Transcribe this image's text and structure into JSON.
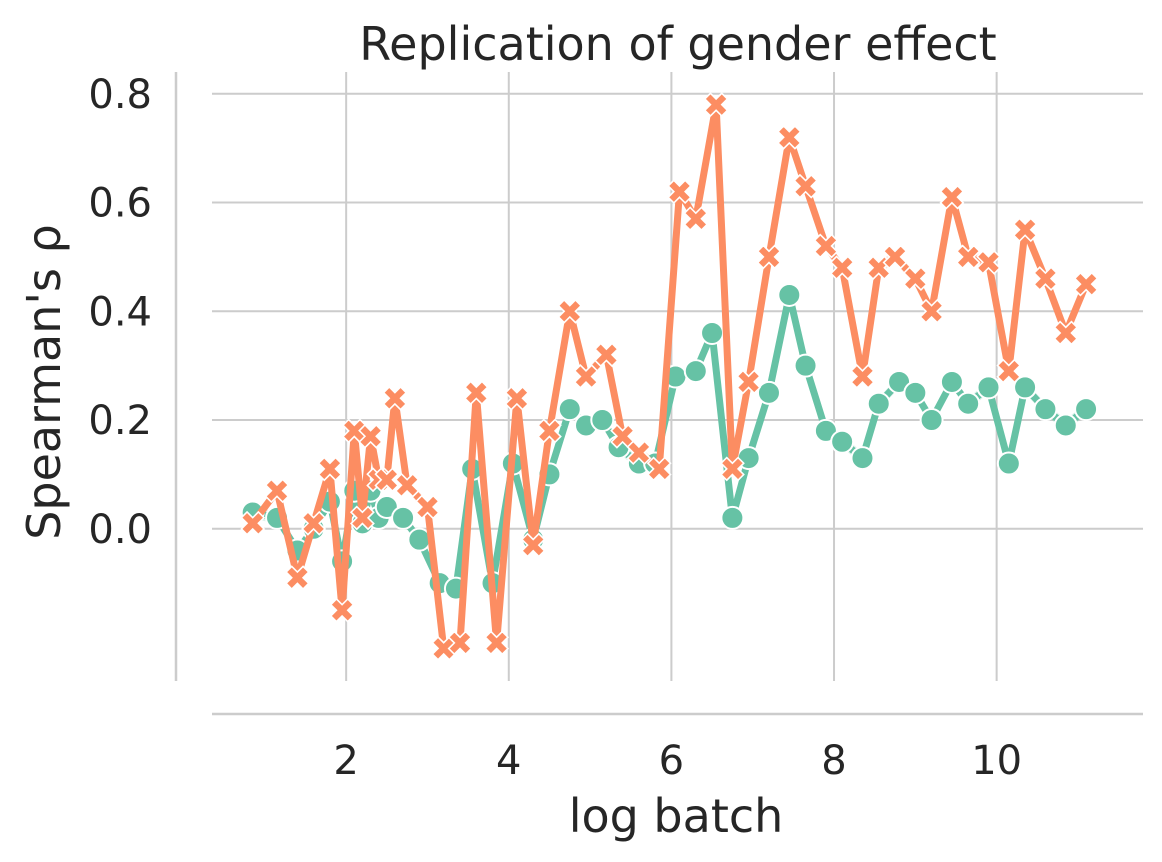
{
  "chart_data": {
    "type": "line",
    "title": "Replication of gender effect",
    "xlabel": "log batch",
    "ylabel": "Spearman's ρ",
    "xlim": [
      0.35,
      11.8
    ],
    "ylim": [
      -0.28,
      0.84
    ],
    "xticks": [
      2,
      4,
      6,
      8,
      10
    ],
    "yticks": [
      0.0,
      0.2,
      0.4,
      0.6,
      0.8
    ],
    "xtick_labels": [
      "2",
      "4",
      "6",
      "8",
      "10"
    ],
    "ytick_labels": [
      "0.0",
      "0.2",
      "0.4",
      "0.6",
      "0.8"
    ],
    "grid": true,
    "legend": "none",
    "series": [
      {
        "color": "#66c2a5",
        "marker": "circle",
        "points": [
          [
            0.85,
            0.03
          ],
          [
            1.15,
            0.02
          ],
          [
            1.4,
            -0.04
          ],
          [
            1.6,
            0.0
          ],
          [
            1.8,
            0.05
          ],
          [
            1.95,
            -0.06
          ],
          [
            2.1,
            0.07
          ],
          [
            2.2,
            0.01
          ],
          [
            2.3,
            0.07
          ],
          [
            2.4,
            0.02
          ],
          [
            2.5,
            0.04
          ],
          [
            2.7,
            0.02
          ],
          [
            2.9,
            -0.02
          ],
          [
            3.15,
            -0.1
          ],
          [
            3.35,
            -0.11
          ],
          [
            3.55,
            0.11
          ],
          [
            3.8,
            -0.1
          ],
          [
            4.05,
            0.12
          ],
          [
            4.3,
            -0.02
          ],
          [
            4.5,
            0.1
          ],
          [
            4.75,
            0.22
          ],
          [
            4.95,
            0.19
          ],
          [
            5.15,
            0.2
          ],
          [
            5.35,
            0.15
          ],
          [
            5.6,
            0.12
          ],
          [
            5.8,
            0.12
          ],
          [
            6.05,
            0.28
          ],
          [
            6.3,
            0.29
          ],
          [
            6.5,
            0.36
          ],
          [
            6.75,
            0.02
          ],
          [
            6.95,
            0.13
          ],
          [
            7.2,
            0.25
          ],
          [
            7.45,
            0.43
          ],
          [
            7.65,
            0.3
          ],
          [
            7.9,
            0.18
          ],
          [
            8.1,
            0.16
          ],
          [
            8.35,
            0.13
          ],
          [
            8.55,
            0.23
          ],
          [
            8.8,
            0.27
          ],
          [
            9.0,
            0.25
          ],
          [
            9.2,
            0.2
          ],
          [
            9.45,
            0.27
          ],
          [
            9.65,
            0.23
          ],
          [
            9.9,
            0.26
          ],
          [
            10.15,
            0.12
          ],
          [
            10.35,
            0.26
          ],
          [
            10.6,
            0.22
          ],
          [
            10.85,
            0.19
          ],
          [
            11.1,
            0.22
          ]
        ]
      },
      {
        "color": "#fc8d62",
        "marker": "x",
        "points": [
          [
            0.85,
            0.01
          ],
          [
            1.15,
            0.07
          ],
          [
            1.4,
            -0.09
          ],
          [
            1.6,
            0.01
          ],
          [
            1.8,
            0.11
          ],
          [
            1.95,
            -0.15
          ],
          [
            2.1,
            0.18
          ],
          [
            2.2,
            0.02
          ],
          [
            2.3,
            0.17
          ],
          [
            2.4,
            0.09
          ],
          [
            2.5,
            0.09
          ],
          [
            2.6,
            0.24
          ],
          [
            2.75,
            0.08
          ],
          [
            3.0,
            0.04
          ],
          [
            3.2,
            -0.22
          ],
          [
            3.4,
            -0.21
          ],
          [
            3.6,
            0.25
          ],
          [
            3.85,
            -0.21
          ],
          [
            4.1,
            0.24
          ],
          [
            4.3,
            -0.03
          ],
          [
            4.5,
            0.18
          ],
          [
            4.75,
            0.4
          ],
          [
            4.95,
            0.28
          ],
          [
            5.2,
            0.32
          ],
          [
            5.4,
            0.17
          ],
          [
            5.6,
            0.14
          ],
          [
            5.85,
            0.11
          ],
          [
            6.1,
            0.62
          ],
          [
            6.3,
            0.57
          ],
          [
            6.55,
            0.78
          ],
          [
            6.75,
            0.11
          ],
          [
            6.95,
            0.27
          ],
          [
            7.2,
            0.5
          ],
          [
            7.45,
            0.72
          ],
          [
            7.65,
            0.63
          ],
          [
            7.9,
            0.52
          ],
          [
            8.1,
            0.48
          ],
          [
            8.35,
            0.28
          ],
          [
            8.55,
            0.48
          ],
          [
            8.75,
            0.5
          ],
          [
            9.0,
            0.46
          ],
          [
            9.2,
            0.4
          ],
          [
            9.45,
            0.61
          ],
          [
            9.65,
            0.5
          ],
          [
            9.9,
            0.49
          ],
          [
            10.15,
            0.29
          ],
          [
            10.35,
            0.55
          ],
          [
            10.6,
            0.46
          ],
          [
            10.85,
            0.36
          ],
          [
            11.1,
            0.45
          ]
        ]
      }
    ]
  }
}
